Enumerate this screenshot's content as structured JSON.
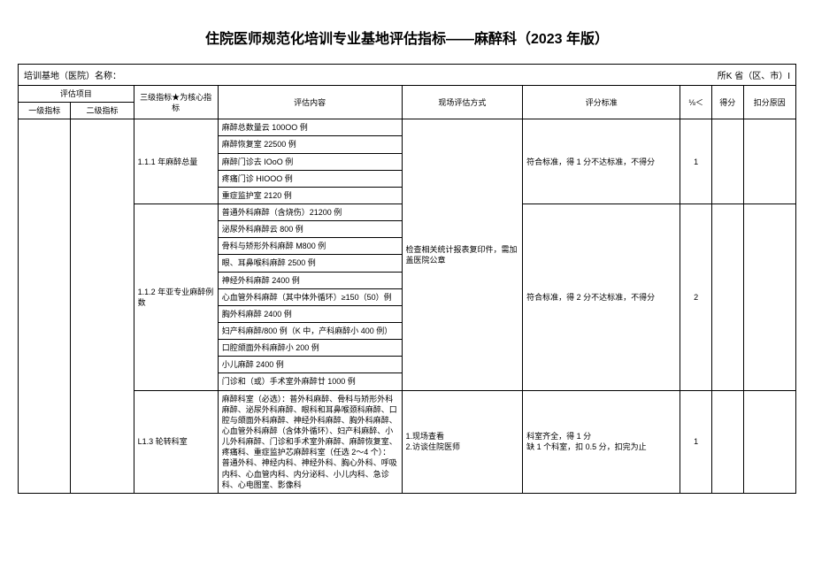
{
  "title": "住院医师规范化培训专业基地评估指标——麻醉科（2023 年版）",
  "header": {
    "label": "培训基地（医院）名称：",
    "right": "所K 省（区、市）I"
  },
  "thead": {
    "group": "评估项目",
    "c1": "一级指标",
    "c2": "二级指标",
    "c3": "三级指标★为核心指标",
    "c4": "评估内容",
    "c5": "现场评估方式",
    "c6": "评分标准",
    "c7": "⅛＜",
    "c8": "得分",
    "c9": "扣分原因"
  },
  "section111": {
    "indicator": "1.1.1 年麻醉总量",
    "rows": [
      "麻醉总数量云 100OO 例",
      "麻醉恢复室 22500 例",
      "麻醉门诊去 IOoO 例",
      "疼痛门诊 HIOOO 例",
      "重症监护室 2120 例"
    ],
    "criteria": "符合标准，得 1 分不达标准，不得分",
    "score": "1"
  },
  "method_combined": "检查相关统计报表复印件，需加盖医院公章",
  "section112": {
    "indicator": "1.1.2 年亚专业麻醉例数",
    "rows": [
      "普通外科麻醉（含烧伤）21200 例",
      "泌尿外科麻醉云 800 例",
      "骨科与矫形外科麻醉 M800 例",
      "眼、耳鼻喉科麻醉 2500 例",
      "神经外科麻醉 2400 例",
      "心血管外科麻醉（其中体外循环）≥150（50）例",
      "胸外科麻醉 2400 例",
      "妇产科麻醉/800 例（K 中，产科麻醉小 400 例）",
      "口腔颌面外科麻醉小 200 例",
      "小儿麻醉 2400 例",
      "门诊和（或）手术室外麻醉廿 1000 例"
    ],
    "criteria": "符合标准，得 2 分不达标准，不得分",
    "score": "2"
  },
  "section113": {
    "indicator": "L1.3 轮转科室",
    "content": "麻醉科室（必选）：普外科麻醉、骨科与矫形外科麻醉、泌尿外科麻醉、眼科和耳鼻喉颈科麻醉、口腔与颌面外科麻醉、神经外科麻醉、胸外科麻醉、心血管外科麻醉（含体外循环）、妇产科麻醉、小儿外科麻醉、门诊和手术室外麻醉、麻醉恢复室、疼痛科、重症监护芯麻醉科室（任选 2～4 个）：普通外科、神经内科、神经外科、胸心外科、呼吸内科、心血管内科、内分泌科、小儿内科、急诊科、心电图室、影像科",
    "method": "1.现场查看\n2.访谈住院医师",
    "criteria": "科室齐全，得 1 分\n缺 1 个科室，扣 0.5 分，扣完为止",
    "score": "1"
  }
}
